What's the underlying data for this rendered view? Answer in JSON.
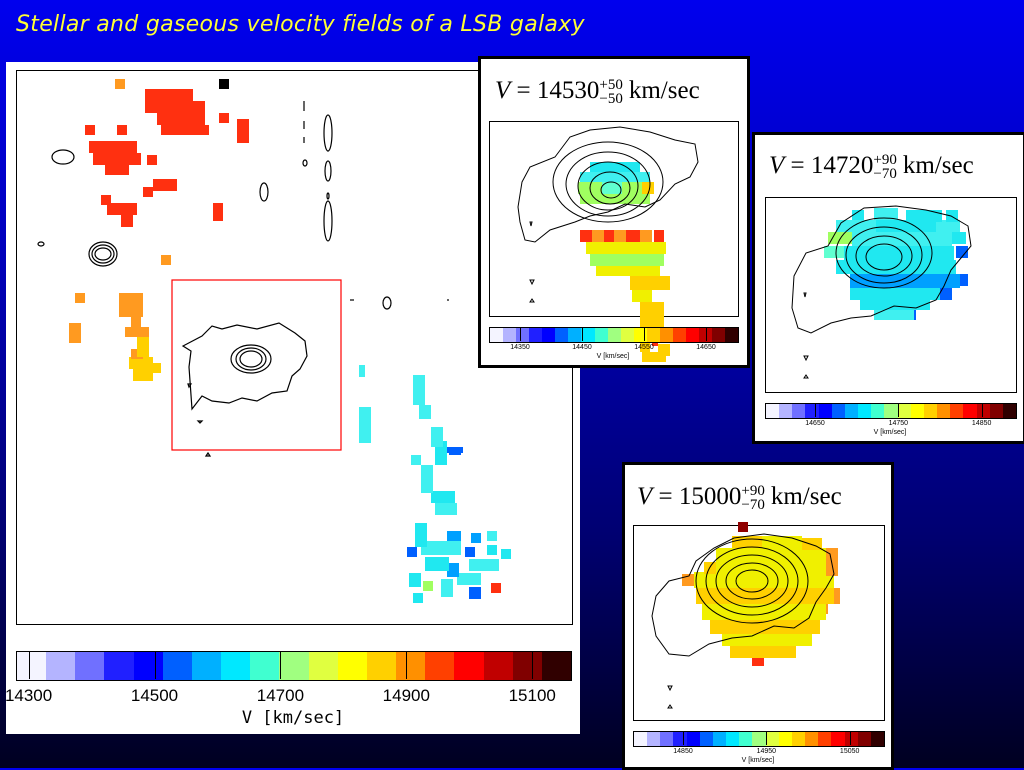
{
  "title": "Stellar and gaseous velocity fields of a LSB galaxy",
  "main_panel": {
    "colorbar": {
      "tick_labels": [
        "14300",
        "14500",
        "14700",
        "14900",
        "15100"
      ],
      "axis_label": "V [km/sec]",
      "vmin": 14280,
      "vmax": 15160
    }
  },
  "insets": [
    {
      "id": "inset-1",
      "equation": {
        "symbol": "V",
        "equals": "=",
        "value": "14530",
        "sup": "+50",
        "sub": "−50",
        "unit": "km/sec"
      },
      "colorbar": {
        "tick_labels": [
          "14350",
          "14450",
          "14550",
          "14650"
        ],
        "axis_label": "V [km/sec]",
        "vmin": 14300,
        "vmax": 14700
      }
    },
    {
      "id": "inset-2",
      "equation": {
        "symbol": "V",
        "equals": "=",
        "value": "14720",
        "sup": "+90",
        "sub": "−70",
        "unit": "km/sec"
      },
      "colorbar": {
        "tick_labels": [
          "14650",
          "14750",
          "14850"
        ],
        "axis_label": "V [km/sec]",
        "vmin": 14590,
        "vmax": 14890
      }
    },
    {
      "id": "inset-3",
      "equation": {
        "symbol": "V",
        "equals": "=",
        "value": "15000",
        "sup": "+90",
        "sub": "−70",
        "unit": "km/sec"
      },
      "colorbar": {
        "tick_labels": [
          "14850",
          "14950",
          "15050"
        ],
        "axis_label": "V [km/sec]",
        "vmin": 14790,
        "vmax": 15090
      }
    }
  ],
  "colors": {
    "background_top": "#0000ee",
    "title": "#ffff33",
    "box": "#ff0000"
  }
}
